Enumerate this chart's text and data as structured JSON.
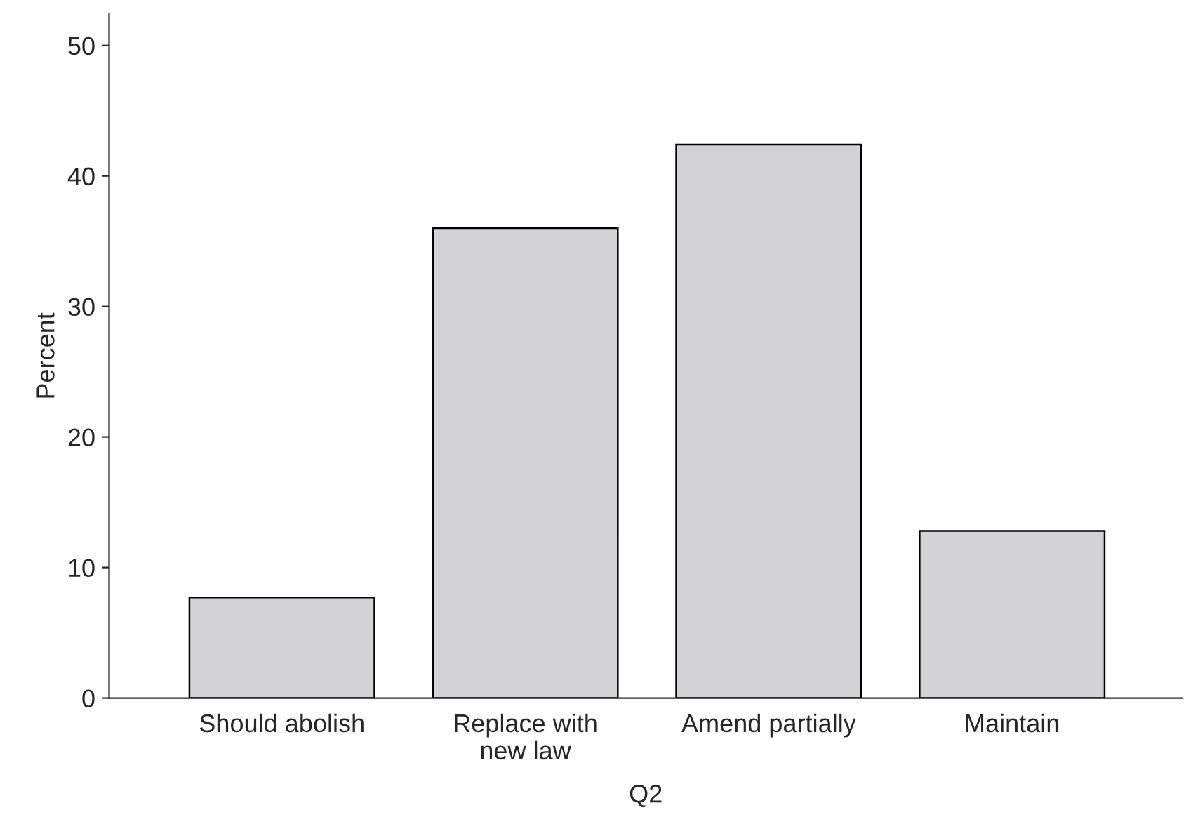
{
  "chart_data": {
    "type": "bar",
    "xlabel": "Q2",
    "ylabel": "Percent",
    "categories": [
      "Should abolish",
      "Replace with\nnew law",
      "Amend partially",
      "Maintain"
    ],
    "values": [
      7.7,
      36.0,
      42.4,
      12.8
    ],
    "color": "#d3d3d5",
    "ylim": [
      0,
      52.4
    ],
    "yticks": [
      0,
      10,
      20,
      30,
      40,
      50
    ],
    "grid": false,
    "legend": false
  }
}
